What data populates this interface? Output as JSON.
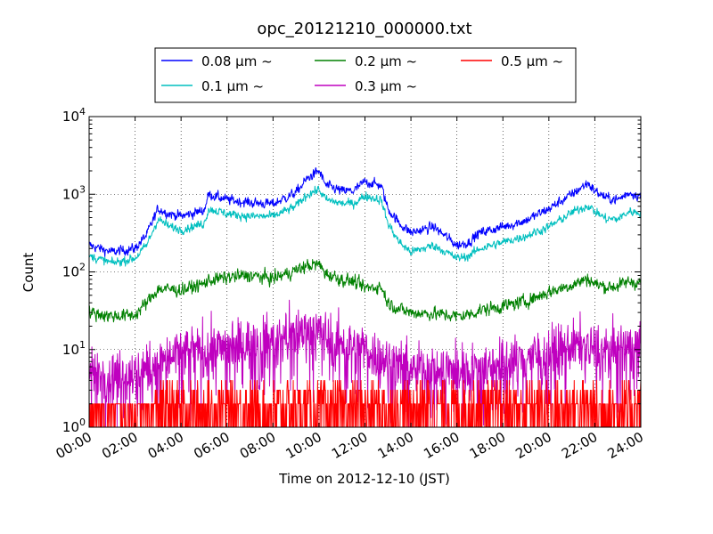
{
  "chart_data": {
    "type": "line",
    "title": "opc_20121210_000000.txt",
    "xlabel": "Time on 2012-12-10 (JST)",
    "ylabel": "Count",
    "x_ticks": [
      "00:00",
      "02:00",
      "04:00",
      "06:00",
      "08:00",
      "10:00",
      "12:00",
      "14:00",
      "16:00",
      "18:00",
      "20:00",
      "22:00",
      "24:00"
    ],
    "y_ticks": [
      {
        "base": "10",
        "exp": "0"
      },
      {
        "base": "10",
        "exp": "1"
      },
      {
        "base": "10",
        "exp": "2"
      },
      {
        "base": "10",
        "exp": "3"
      },
      {
        "base": "10",
        "exp": "4"
      }
    ],
    "xlim_hours": [
      0,
      24
    ],
    "ylim": [
      1,
      10000
    ],
    "yscale": "log",
    "grid": true,
    "legend_position": "top (above plot)",
    "series": [
      {
        "name": "0.08 μm ~",
        "color": "#0000ff",
        "x": [
          0,
          1,
          2,
          2.5,
          3,
          3.5,
          4,
          5,
          5.2,
          6,
          7,
          8,
          9,
          9.5,
          10,
          10.3,
          11,
          11.5,
          12,
          12.7,
          13,
          13.5,
          14,
          15,
          16,
          16.5,
          17,
          18,
          19,
          20,
          21,
          21.7,
          22,
          22.5,
          23,
          23.5,
          24
        ],
        "y": [
          220,
          180,
          200,
          300,
          650,
          560,
          520,
          620,
          1000,
          850,
          780,
          750,
          1050,
          1600,
          2000,
          1300,
          1100,
          1100,
          1450,
          1300,
          650,
          420,
          320,
          380,
          220,
          240,
          320,
          380,
          460,
          650,
          1000,
          1400,
          1100,
          900,
          850,
          1050,
          950
        ],
        "noise": 0.09
      },
      {
        "name": "0.1 μm ~",
        "color": "#00bfbf",
        "x": [
          0,
          1,
          2,
          2.5,
          3,
          3.5,
          4,
          5,
          5.2,
          6,
          7,
          8,
          9,
          9.5,
          10,
          10.3,
          11,
          11.5,
          12,
          12.7,
          13,
          13.5,
          14,
          15,
          16,
          16.5,
          17,
          18,
          19,
          20,
          21,
          21.7,
          22,
          22.5,
          23,
          23.5,
          24
        ],
        "y": [
          160,
          130,
          150,
          220,
          480,
          380,
          350,
          420,
          650,
          560,
          520,
          520,
          700,
          1000,
          1150,
          850,
          760,
          760,
          950,
          850,
          420,
          240,
          180,
          220,
          150,
          160,
          200,
          240,
          290,
          380,
          580,
          720,
          600,
          480,
          480,
          600,
          580
        ],
        "noise": 0.08
      },
      {
        "name": "0.2 μm ~",
        "color": "#008000",
        "x": [
          0,
          1,
          2,
          2.5,
          3,
          3.5,
          4,
          5,
          5.2,
          6,
          7,
          8,
          9,
          9.5,
          10,
          10.3,
          11,
          11.5,
          12,
          12.7,
          13,
          13.5,
          14,
          15,
          16,
          16.5,
          17,
          18,
          19,
          20,
          21,
          21.7,
          22,
          22.5,
          23,
          23.5,
          24
        ],
        "y": [
          30,
          27,
          28,
          40,
          60,
          60,
          58,
          70,
          78,
          85,
          90,
          82,
          105,
          120,
          125,
          95,
          80,
          75,
          62,
          65,
          40,
          33,
          30,
          29,
          27,
          28,
          32,
          36,
          42,
          55,
          68,
          82,
          70,
          64,
          66,
          75,
          72
        ],
        "noise": 0.12
      },
      {
        "name": "0.3 μm ~",
        "color": "#bf00bf",
        "x": [
          0,
          1,
          2,
          3,
          4,
          5,
          6,
          7,
          8,
          9,
          9.5,
          10,
          10.5,
          11,
          12,
          13,
          14,
          15,
          16,
          17,
          18,
          19,
          20,
          21,
          21.7,
          22,
          23,
          24
        ],
        "y": [
          5,
          4.5,
          5,
          7,
          9,
          10,
          11,
          12,
          13,
          16,
          18,
          17,
          14,
          12,
          10,
          7,
          6,
          5.5,
          5.5,
          6,
          7,
          8,
          9,
          11,
          12,
          10,
          10,
          11
        ],
        "noise": 0.32
      },
      {
        "name": "0.5 μm ~",
        "color": "#ff0000",
        "x": [
          0,
          2,
          4,
          6,
          8,
          10,
          12,
          14,
          16,
          18,
          20,
          22,
          24
        ],
        "y": [
          1,
          1,
          1.6,
          1.7,
          1.8,
          2,
          1.8,
          1.5,
          1.2,
          1.3,
          1.6,
          1.8,
          1.7
        ],
        "noise": 0.55
      }
    ],
    "legend_columns": [
      [
        "0.08 μm ~",
        "0.1 μm ~"
      ],
      [
        "0.2 μm ~",
        "0.3 μm ~"
      ],
      [
        "0.5 μm ~"
      ]
    ]
  }
}
